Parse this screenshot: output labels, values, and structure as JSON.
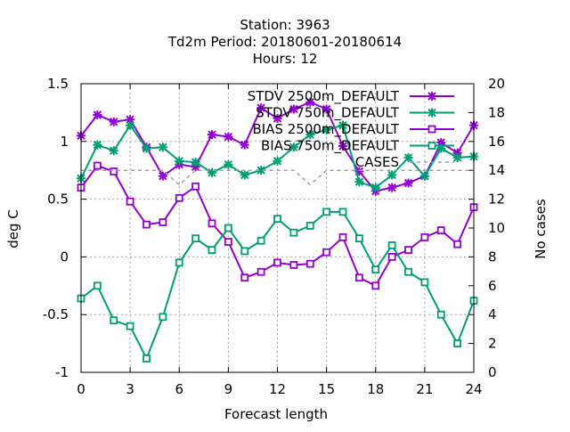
{
  "title": {
    "line1": "Station:      3963",
    "line2": "Td2m   Period: 20180601-20180614",
    "line3": "Hours:  12"
  },
  "colors": {
    "stdv_2500": "#9400d3",
    "stdv_750": "#009e73",
    "bias_2500": "#9400d3",
    "bias_750": "#009e73",
    "cases": "#a0a0a0",
    "grid": "#a0a0a0"
  },
  "chart_data": {
    "type": "line",
    "xlabel": "Forecast length",
    "ylabel": "deg C",
    "y2label": "No cases",
    "xlim": [
      0,
      24
    ],
    "ylim": [
      -1,
      1.5
    ],
    "y2lim": [
      0,
      20
    ],
    "x_ticks": [
      "0",
      "3",
      "6",
      "9",
      "12",
      "15",
      "18",
      "21",
      "24"
    ],
    "y_ticks": [
      "1.5",
      "1",
      "0.5",
      "0",
      "-0.5",
      "-1"
    ],
    "y2_ticks": [
      "20",
      "18",
      "16",
      "14",
      "12",
      "10",
      "8",
      "6",
      "4",
      "2",
      "0"
    ],
    "grid": true,
    "legend_position": "top-right",
    "x": [
      0,
      1,
      2,
      3,
      4,
      5,
      6,
      7,
      8,
      9,
      10,
      11,
      12,
      13,
      14,
      15,
      16,
      17,
      18,
      19,
      20,
      21,
      22,
      23,
      24
    ],
    "series": [
      {
        "name": "STDV 2500m_DEFAULT",
        "axis": "left",
        "marker": "x",
        "values": [
          1.05,
          1.23,
          1.17,
          1.19,
          0.95,
          0.7,
          0.8,
          0.78,
          1.06,
          1.04,
          0.97,
          1.29,
          1.2,
          1.28,
          1.34,
          1.28,
          0.96,
          0.74,
          0.57,
          0.6,
          0.64,
          0.7,
          0.99,
          0.9,
          1.14
        ]
      },
      {
        "name": "STDV 750m_DEFAULT",
        "axis": "left",
        "marker": "x",
        "values": [
          0.68,
          0.97,
          0.92,
          1.14,
          0.94,
          0.95,
          0.83,
          0.82,
          0.73,
          0.8,
          0.71,
          0.75,
          0.83,
          0.95,
          1.06,
          1.1,
          1.14,
          0.65,
          0.6,
          0.71,
          0.86,
          0.7,
          0.94,
          0.86,
          0.87
        ]
      },
      {
        "name": "BIAS 2500m_DEFAULT",
        "axis": "left",
        "marker": "square",
        "values": [
          0.6,
          0.79,
          0.74,
          0.48,
          0.28,
          0.3,
          0.51,
          0.61,
          0.29,
          0.13,
          -0.18,
          -0.13,
          -0.05,
          -0.07,
          -0.06,
          0.04,
          0.17,
          -0.18,
          -0.25,
          0.0,
          0.06,
          0.17,
          0.23,
          0.11,
          0.43
        ]
      },
      {
        "name": "BIAS 750m_DEFAULT",
        "axis": "left",
        "marker": "square",
        "values": [
          -0.36,
          -0.25,
          -0.55,
          -0.6,
          -0.88,
          -0.52,
          -0.05,
          0.16,
          0.06,
          0.25,
          0.05,
          0.14,
          0.33,
          0.21,
          0.27,
          0.39,
          0.39,
          0.16,
          -0.11,
          0.1,
          -0.13,
          -0.22,
          -0.5,
          -0.75,
          -0.38
        ]
      },
      {
        "name": "CASES",
        "axis": "right",
        "marker": "none",
        "dashed": true,
        "values": [
          14,
          14,
          14,
          14,
          14,
          14,
          13,
          14,
          14,
          14,
          14,
          14,
          14,
          14,
          13,
          14,
          14,
          14,
          14,
          14,
          14,
          14,
          14,
          14,
          14
        ]
      }
    ]
  }
}
